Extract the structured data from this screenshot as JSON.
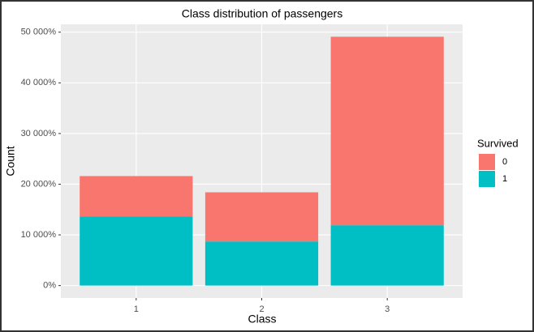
{
  "chart_data": {
    "type": "stacked-bar",
    "title": "Class distribution of passengers",
    "x_label": "Class",
    "y_label": "Count",
    "categories": [
      "1",
      "2",
      "3"
    ],
    "series": [
      {
        "name": "0",
        "color": "#f8766d",
        "values": [
          8000,
          9700,
          37200
        ]
      },
      {
        "name": "1",
        "color": "#00bfc4",
        "values": [
          13600,
          8700,
          11900
        ]
      }
    ],
    "stack_order": [
      "1",
      "0"
    ],
    "legend_title": "Survived",
    "legend": "right",
    "ylim": [
      -2455,
      51555
    ],
    "yticks": [
      {
        "value": 0,
        "label": "0%"
      },
      {
        "value": 10000,
        "label": "10 000%"
      },
      {
        "value": 20000,
        "label": "20 000%"
      },
      {
        "value": 30000,
        "label": "30 000%"
      },
      {
        "value": 40000,
        "label": "40 000%"
      },
      {
        "value": 50000,
        "label": "50 000%"
      }
    ],
    "grid": true
  }
}
